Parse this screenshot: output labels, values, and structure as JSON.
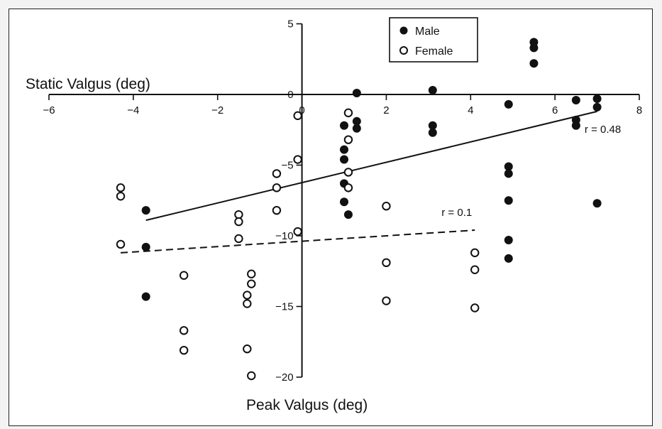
{
  "chart_data": {
    "type": "scatter",
    "xlabel": "Peak Valgus (deg)",
    "ylabel": "Static Valgus (deg)",
    "xlim": [
      -6,
      8
    ],
    "ylim": [
      -20,
      5
    ],
    "x_ticks": [
      -6,
      -4,
      -2,
      0,
      2,
      4,
      6,
      8
    ],
    "y_ticks": [
      5,
      0,
      -5,
      -10,
      -15,
      -20
    ],
    "legend_position": "top-center",
    "series": [
      {
        "name": "Male",
        "marker": "filled-circle",
        "color": "#111111",
        "points": [
          [
            -3.7,
            -8.2
          ],
          [
            -3.7,
            -10.8
          ],
          [
            -3.7,
            -14.3
          ],
          [
            1.0,
            -2.2
          ],
          [
            1.0,
            -3.9
          ],
          [
            1.0,
            -4.6
          ],
          [
            1.0,
            -6.3
          ],
          [
            1.0,
            -7.6
          ],
          [
            1.1,
            -8.5
          ],
          [
            1.3,
            0.1
          ],
          [
            1.3,
            -1.9
          ],
          [
            1.3,
            -2.4
          ],
          [
            3.1,
            0.3
          ],
          [
            3.1,
            -2.2
          ],
          [
            3.1,
            -2.7
          ],
          [
            4.9,
            -0.7
          ],
          [
            4.9,
            -5.1
          ],
          [
            4.9,
            -5.6
          ],
          [
            4.9,
            -7.5
          ],
          [
            4.9,
            -10.3
          ],
          [
            4.9,
            -11.6
          ],
          [
            5.5,
            3.7
          ],
          [
            5.5,
            3.3
          ],
          [
            5.5,
            2.2
          ],
          [
            6.5,
            -0.4
          ],
          [
            6.5,
            -1.8
          ],
          [
            6.5,
            -2.2
          ],
          [
            7.0,
            -0.3
          ],
          [
            7.0,
            -0.9
          ],
          [
            7.0,
            -7.7
          ]
        ]
      },
      {
        "name": "Female",
        "marker": "open-circle",
        "color": "#111111",
        "points": [
          [
            -4.3,
            -6.6
          ],
          [
            -4.3,
            -7.2
          ],
          [
            -4.3,
            -10.6
          ],
          [
            -2.8,
            -12.8
          ],
          [
            -2.8,
            -16.7
          ],
          [
            -2.8,
            -18.1
          ],
          [
            -1.5,
            -8.5
          ],
          [
            -1.5,
            -9.0
          ],
          [
            -1.5,
            -10.2
          ],
          [
            -1.3,
            -14.2
          ],
          [
            -1.3,
            -14.8
          ],
          [
            -1.3,
            -18.0
          ],
          [
            -1.2,
            -12.7
          ],
          [
            -1.2,
            -13.4
          ],
          [
            -1.2,
            -19.9
          ],
          [
            -0.6,
            -5.6
          ],
          [
            -0.6,
            -6.6
          ],
          [
            -0.6,
            -8.2
          ],
          [
            -0.1,
            -1.5
          ],
          [
            -0.1,
            -4.6
          ],
          [
            -0.1,
            -9.7
          ],
          [
            1.1,
            -1.3
          ],
          [
            1.1,
            -3.2
          ],
          [
            1.1,
            -5.5
          ],
          [
            1.1,
            -6.6
          ],
          [
            2.0,
            -7.9
          ],
          [
            2.0,
            -11.9
          ],
          [
            2.0,
            -14.6
          ],
          [
            4.1,
            -11.2
          ],
          [
            4.1,
            -12.4
          ],
          [
            4.1,
            -15.1
          ]
        ]
      }
    ],
    "fit_lines": [
      {
        "label": "r = 0.48",
        "style": "solid",
        "x": [
          -3.7,
          7.0
        ],
        "y": [
          -8.9,
          -1.2
        ]
      },
      {
        "label": "r = 0.1",
        "style": "dashed",
        "x": [
          -4.3,
          4.1
        ],
        "y": [
          -11.2,
          -9.6
        ]
      }
    ]
  }
}
